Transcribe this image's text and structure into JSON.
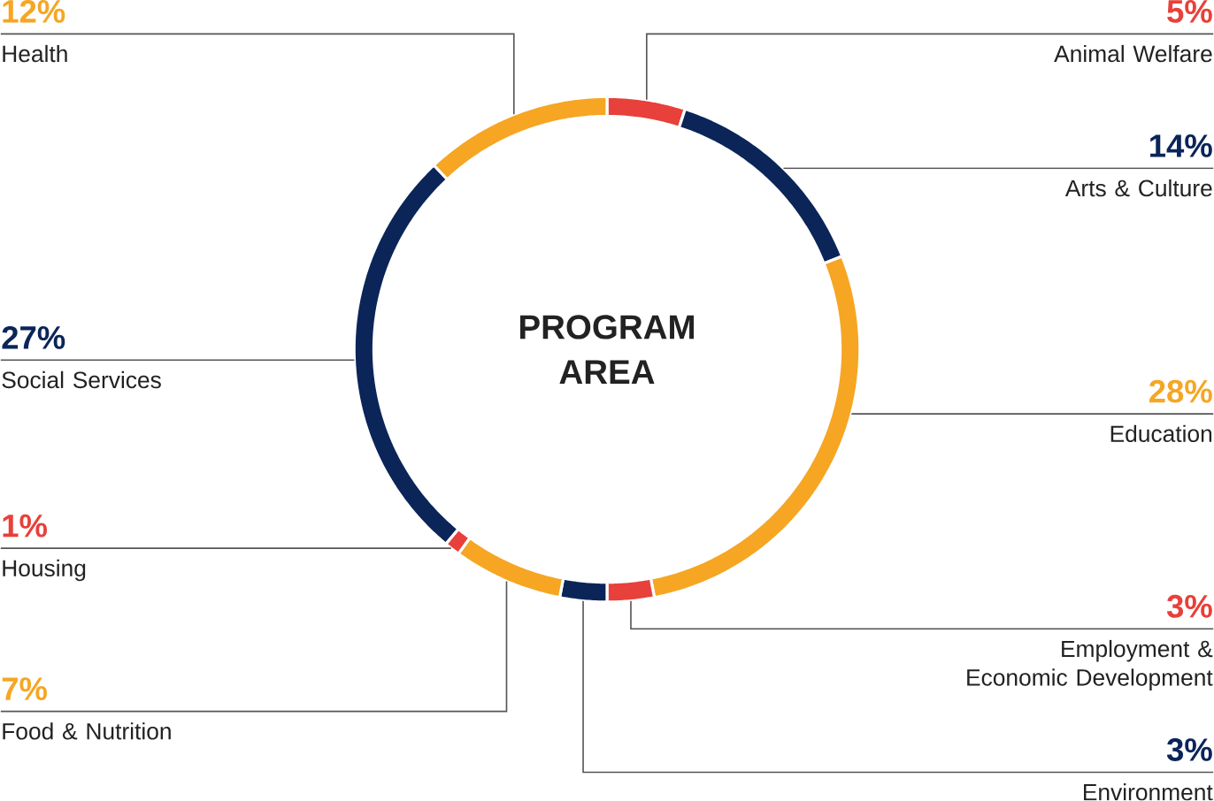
{
  "chart_data": {
    "type": "donut",
    "title": "PROGRAM AREA",
    "categories": [
      "Animal Welfare",
      "Arts & Culture",
      "Education",
      "Employment & Economic Development",
      "Environment",
      "Food & Nutrition",
      "Housing",
      "Social Services",
      "Health"
    ],
    "values": [
      5,
      14,
      28,
      3,
      3,
      7,
      1,
      27,
      12
    ],
    "colors": [
      "#e8403a",
      "#0b2559",
      "#f6a623",
      "#e8403a",
      "#0b2559",
      "#f6a623",
      "#e8403a",
      "#0b2559",
      "#f6a623"
    ],
    "value_labels": [
      "5%",
      "14%",
      "28%",
      "3%",
      "3%",
      "7%",
      "1%",
      "27%",
      "12%"
    ]
  }
}
